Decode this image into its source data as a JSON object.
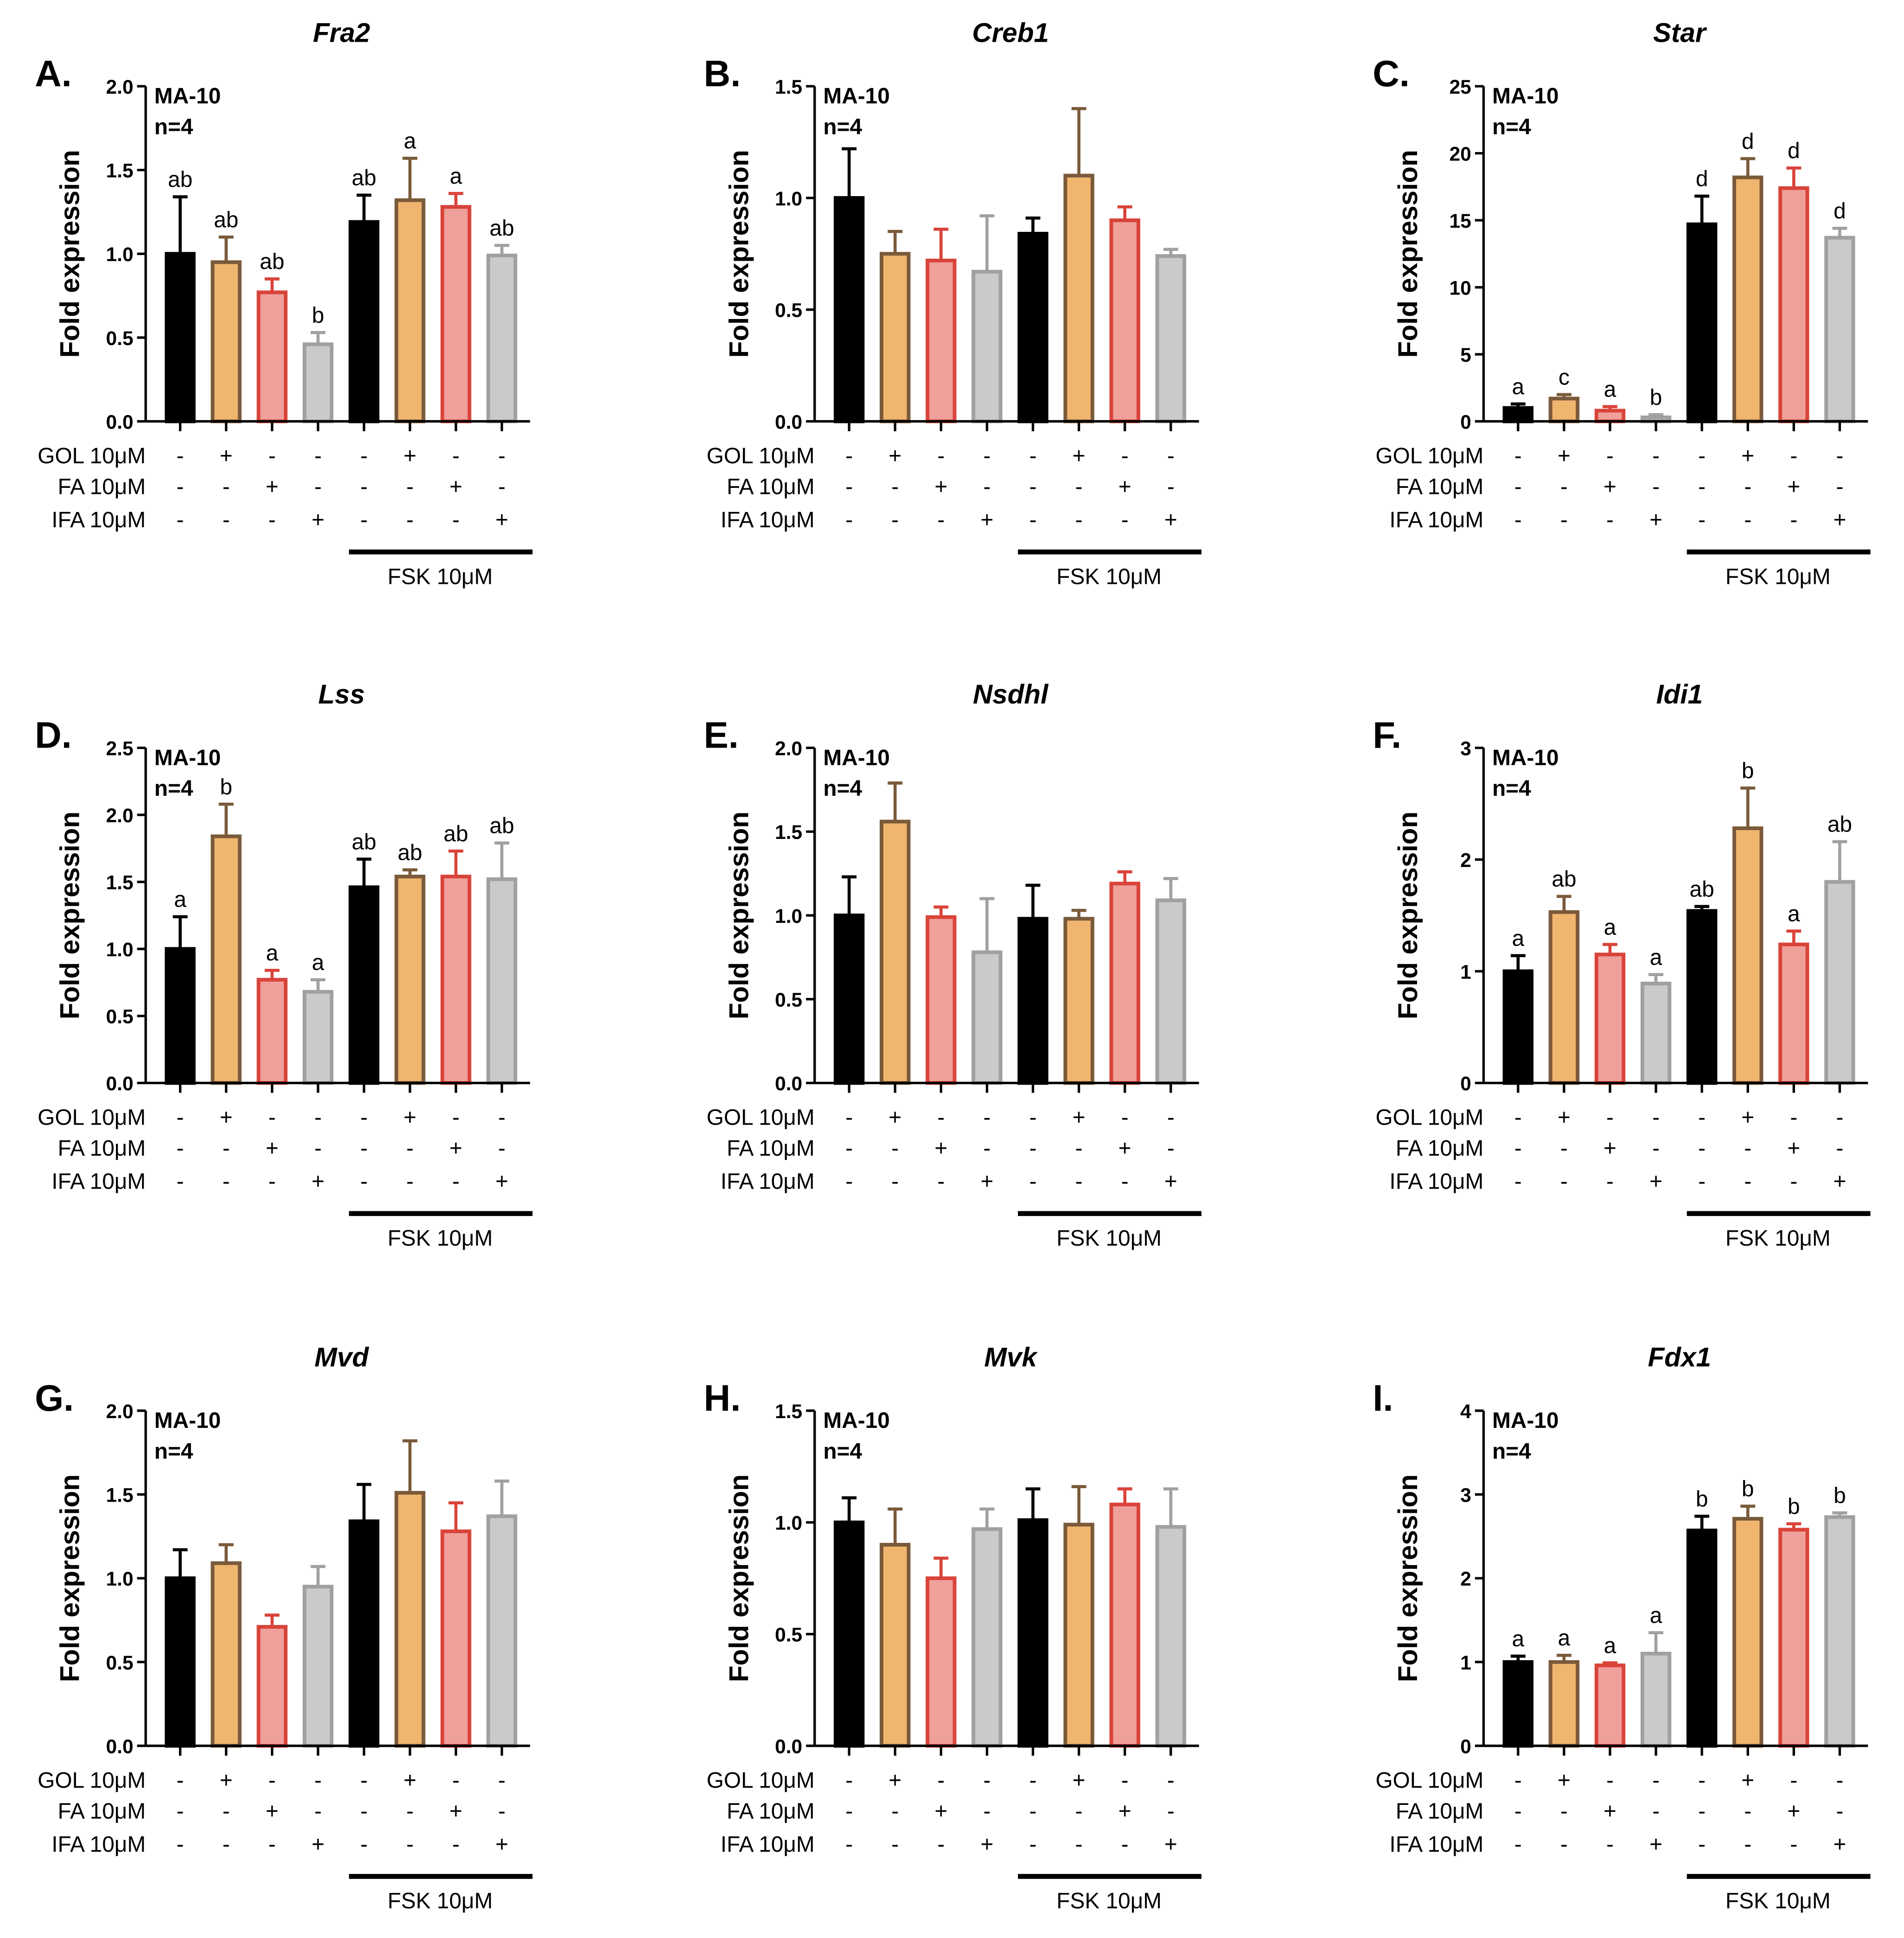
{
  "chart_data": [
    {
      "type": "bar",
      "panel": "A.",
      "title": "Fra2",
      "ylabel": "Fold expression",
      "cell_line": "MA-10",
      "n": "n=4",
      "ylim": [
        0,
        2
      ],
      "yticks": [
        {
          "value": 0,
          "label": "0.0"
        },
        {
          "value": 0.5,
          "label": "0.5"
        },
        {
          "value": 1,
          "label": "1.0"
        },
        {
          "value": 1.5,
          "label": "1.5"
        },
        {
          "value": 2,
          "label": "2.0"
        }
      ],
      "values": [
        1.0,
        0.95,
        0.77,
        0.46,
        1.19,
        1.32,
        1.28,
        0.99
      ],
      "errors": [
        0.34,
        0.15,
        0.08,
        0.07,
        0.16,
        0.25,
        0.08,
        0.06
      ],
      "letters": [
        "ab",
        "ab",
        "ab",
        "b",
        "ab",
        "a",
        "a",
        "ab"
      ],
      "colors": [
        "#000000",
        "#f0b56e",
        "#f0a09a",
        "#c8cacc",
        "#000000",
        "#f0b56e",
        "#f0a09a",
        "#c8cacc"
      ],
      "edge_colors": [
        "#000000",
        "#7a5a3a",
        "#d9443a",
        "#a0a0a0",
        "#000000",
        "#7a5a3a",
        "#d9443a",
        "#a0a0a0"
      ],
      "treatments": [
        {
          "name": "GOL 10μM",
          "signs": [
            "-",
            "+",
            "-",
            "-",
            "-",
            "+",
            "-",
            "-"
          ]
        },
        {
          "name": "FA 10μM",
          "signs": [
            "-",
            "-",
            "+",
            "-",
            "-",
            "-",
            "+",
            "-"
          ]
        },
        {
          "name": "IFA 10μM",
          "signs": [
            "-",
            "-",
            "-",
            "+",
            "-",
            "-",
            "-",
            "+"
          ]
        }
      ],
      "group_label": "FSK 10μM"
    },
    {
      "type": "bar",
      "panel": "B.",
      "title": "Creb1",
      "ylabel": "Fold expression",
      "cell_line": "MA-10",
      "n": "n=4",
      "ylim": [
        0,
        1.5
      ],
      "yticks": [
        {
          "value": 0,
          "label": "0.0"
        },
        {
          "value": 0.5,
          "label": "0.5"
        },
        {
          "value": 1,
          "label": "1.0"
        },
        {
          "value": 1.5,
          "label": "1.5"
        }
      ],
      "values": [
        1.0,
        0.75,
        0.72,
        0.67,
        0.84,
        1.1,
        0.9,
        0.74
      ],
      "errors": [
        0.22,
        0.1,
        0.14,
        0.25,
        0.07,
        0.3,
        0.06,
        0.03
      ],
      "colors": [
        "#000000",
        "#f0b56e",
        "#f0a09a",
        "#c8cacc",
        "#000000",
        "#f0b56e",
        "#f0a09a",
        "#c8cacc"
      ],
      "edge_colors": [
        "#000000",
        "#7a5a3a",
        "#d9443a",
        "#a0a0a0",
        "#000000",
        "#7a5a3a",
        "#d9443a",
        "#a0a0a0"
      ],
      "treatments": [
        {
          "name": "GOL 10μM",
          "signs": [
            "-",
            "+",
            "-",
            "-",
            "-",
            "+",
            "-",
            "-"
          ]
        },
        {
          "name": "FA 10μM",
          "signs": [
            "-",
            "-",
            "+",
            "-",
            "-",
            "-",
            "+",
            "-"
          ]
        },
        {
          "name": "IFA 10μM",
          "signs": [
            "-",
            "-",
            "-",
            "+",
            "-",
            "-",
            "-",
            "+"
          ]
        }
      ],
      "group_label": "FSK 10μM"
    },
    {
      "type": "bar",
      "panel": "C.",
      "title": "Star",
      "ylabel": "Fold expression",
      "cell_line": "MA-10",
      "n": "n=4",
      "ylim": [
        0,
        25
      ],
      "yticks": [
        0,
        5,
        10,
        15,
        20,
        25
      ],
      "values": [
        1.0,
        1.7,
        0.8,
        0.3,
        14.7,
        18.2,
        17.4,
        13.7
      ],
      "errors": [
        0.3,
        0.3,
        0.3,
        0.2,
        2.1,
        1.4,
        1.5,
        0.7
      ],
      "letters": [
        "a",
        "c",
        "a",
        "b",
        "d",
        "d",
        "d",
        "d"
      ],
      "colors": [
        "#000000",
        "#f0b56e",
        "#f0a09a",
        "#c8cacc",
        "#000000",
        "#f0b56e",
        "#f0a09a",
        "#c8cacc"
      ],
      "edge_colors": [
        "#000000",
        "#7a5a3a",
        "#d9443a",
        "#a0a0a0",
        "#000000",
        "#7a5a3a",
        "#d9443a",
        "#a0a0a0"
      ],
      "treatments": [
        {
          "name": "GOL 10μM",
          "signs": [
            "-",
            "+",
            "-",
            "-",
            "-",
            "+",
            "-",
            "-"
          ]
        },
        {
          "name": "FA 10μM",
          "signs": [
            "-",
            "-",
            "+",
            "-",
            "-",
            "-",
            "+",
            "-"
          ]
        },
        {
          "name": "IFA 10μM",
          "signs": [
            "-",
            "-",
            "-",
            "+",
            "-",
            "-",
            "-",
            "+"
          ]
        }
      ],
      "group_label": "FSK 10μM"
    },
    {
      "type": "bar",
      "panel": "D.",
      "title": "Lss",
      "ylabel": "Fold expression",
      "cell_line": "MA-10",
      "n": "n=4",
      "ylim": [
        0,
        2.5
      ],
      "yticks": [
        {
          "value": 0,
          "label": "0.0"
        },
        {
          "value": 0.5,
          "label": "0.5"
        },
        {
          "value": 1,
          "label": "1.0"
        },
        {
          "value": 1.5,
          "label": "1.5"
        },
        {
          "value": 2,
          "label": "2.0"
        },
        {
          "value": 2.5,
          "label": "2.5"
        }
      ],
      "values": [
        1.0,
        1.84,
        0.77,
        0.68,
        1.46,
        1.54,
        1.54,
        1.52
      ],
      "errors": [
        0.24,
        0.24,
        0.07,
        0.09,
        0.21,
        0.05,
        0.19,
        0.27
      ],
      "letters": [
        "a",
        "b",
        "a",
        "a",
        "ab",
        "ab",
        "ab",
        "ab"
      ],
      "colors": [
        "#000000",
        "#f0b56e",
        "#f0a09a",
        "#c8cacc",
        "#000000",
        "#f0b56e",
        "#f0a09a",
        "#c8cacc"
      ],
      "edge_colors": [
        "#000000",
        "#7a5a3a",
        "#d9443a",
        "#a0a0a0",
        "#000000",
        "#7a5a3a",
        "#d9443a",
        "#a0a0a0"
      ],
      "treatments": [
        {
          "name": "GOL 10μM",
          "signs": [
            "-",
            "+",
            "-",
            "-",
            "-",
            "+",
            "-",
            "-"
          ]
        },
        {
          "name": "FA 10μM",
          "signs": [
            "-",
            "-",
            "+",
            "-",
            "-",
            "-",
            "+",
            "-"
          ]
        },
        {
          "name": "IFA 10μM",
          "signs": [
            "-",
            "-",
            "-",
            "+",
            "-",
            "-",
            "-",
            "+"
          ]
        }
      ],
      "group_label": "FSK 10μM"
    },
    {
      "type": "bar",
      "panel": "E.",
      "title": "Nsdhl",
      "ylabel": "Fold expression",
      "cell_line": "MA-10",
      "n": "n=4",
      "ylim": [
        0,
        2
      ],
      "yticks": [
        {
          "value": 0,
          "label": "0.0"
        },
        {
          "value": 0.5,
          "label": "0.5"
        },
        {
          "value": 1,
          "label": "1.0"
        },
        {
          "value": 1.5,
          "label": "1.5"
        },
        {
          "value": 2,
          "label": "2.0"
        }
      ],
      "values": [
        1.0,
        1.56,
        0.99,
        0.78,
        0.98,
        0.98,
        1.19,
        1.09
      ],
      "errors": [
        0.23,
        0.23,
        0.06,
        0.32,
        0.2,
        0.05,
        0.07,
        0.13
      ],
      "colors": [
        "#000000",
        "#f0b56e",
        "#f0a09a",
        "#c8cacc",
        "#000000",
        "#f0b56e",
        "#f0a09a",
        "#c8cacc"
      ],
      "edge_colors": [
        "#000000",
        "#7a5a3a",
        "#d9443a",
        "#a0a0a0",
        "#000000",
        "#7a5a3a",
        "#d9443a",
        "#a0a0a0"
      ],
      "treatments": [
        {
          "name": "GOL 10μM",
          "signs": [
            "-",
            "+",
            "-",
            "-",
            "-",
            "+",
            "-",
            "-"
          ]
        },
        {
          "name": "FA 10μM",
          "signs": [
            "-",
            "-",
            "+",
            "-",
            "-",
            "-",
            "+",
            "-"
          ]
        },
        {
          "name": "IFA 10μM",
          "signs": [
            "-",
            "-",
            "-",
            "+",
            "-",
            "-",
            "-",
            "+"
          ]
        }
      ],
      "group_label": "FSK 10μM"
    },
    {
      "type": "bar",
      "panel": "F.",
      "title": "Idi1",
      "ylabel": "Fold expression",
      "cell_line": "MA-10",
      "n": "n=4",
      "ylim": [
        0,
        3
      ],
      "yticks": [
        0,
        1,
        2,
        3
      ],
      "values": [
        1.0,
        1.53,
        1.15,
        0.89,
        1.54,
        2.28,
        1.24,
        1.8
      ],
      "errors": [
        0.14,
        0.14,
        0.09,
        0.08,
        0.04,
        0.36,
        0.12,
        0.36
      ],
      "letters": [
        "a",
        "ab",
        "a",
        "a",
        "ab",
        "b",
        "a",
        "ab"
      ],
      "colors": [
        "#000000",
        "#f0b56e",
        "#f0a09a",
        "#c8cacc",
        "#000000",
        "#f0b56e",
        "#f0a09a",
        "#c8cacc"
      ],
      "edge_colors": [
        "#000000",
        "#7a5a3a",
        "#d9443a",
        "#a0a0a0",
        "#000000",
        "#7a5a3a",
        "#d9443a",
        "#a0a0a0"
      ],
      "treatments": [
        {
          "name": "GOL 10μM",
          "signs": [
            "-",
            "+",
            "-",
            "-",
            "-",
            "+",
            "-",
            "-"
          ]
        },
        {
          "name": "FA 10μM",
          "signs": [
            "-",
            "-",
            "+",
            "-",
            "-",
            "-",
            "+",
            "-"
          ]
        },
        {
          "name": "IFA 10μM",
          "signs": [
            "-",
            "-",
            "-",
            "+",
            "-",
            "-",
            "-",
            "+"
          ]
        }
      ],
      "group_label": "FSK 10μM"
    },
    {
      "type": "bar",
      "panel": "G.",
      "title": "Mvd",
      "ylabel": "Fold expression",
      "cell_line": "MA-10",
      "n": "n=4",
      "ylim": [
        0,
        2
      ],
      "yticks": [
        {
          "value": 0,
          "label": "0.0"
        },
        {
          "value": 0.5,
          "label": "0.5"
        },
        {
          "value": 1,
          "label": "1.0"
        },
        {
          "value": 1.5,
          "label": "1.5"
        },
        {
          "value": 2,
          "label": "2.0"
        }
      ],
      "values": [
        1.0,
        1.09,
        0.71,
        0.95,
        1.34,
        1.51,
        1.28,
        1.37
      ],
      "errors": [
        0.17,
        0.11,
        0.07,
        0.12,
        0.22,
        0.31,
        0.17,
        0.21
      ],
      "colors": [
        "#000000",
        "#f0b56e",
        "#f0a09a",
        "#c8cacc",
        "#000000",
        "#f0b56e",
        "#f0a09a",
        "#c8cacc"
      ],
      "edge_colors": [
        "#000000",
        "#7a5a3a",
        "#d9443a",
        "#a0a0a0",
        "#000000",
        "#7a5a3a",
        "#d9443a",
        "#a0a0a0"
      ],
      "treatments": [
        {
          "name": "GOL 10μM",
          "signs": [
            "-",
            "+",
            "-",
            "-",
            "-",
            "+",
            "-",
            "-"
          ]
        },
        {
          "name": "FA 10μM",
          "signs": [
            "-",
            "-",
            "+",
            "-",
            "-",
            "-",
            "+",
            "-"
          ]
        },
        {
          "name": "IFA 10μM",
          "signs": [
            "-",
            "-",
            "-",
            "+",
            "-",
            "-",
            "-",
            "+"
          ]
        }
      ],
      "group_label": "FSK 10μM"
    },
    {
      "type": "bar",
      "panel": "H.",
      "title": "Mvk",
      "ylabel": "Fold expression",
      "cell_line": "MA-10",
      "n": "n=4",
      "ylim": [
        0,
        1.5
      ],
      "yticks": [
        {
          "value": 0,
          "label": "0.0"
        },
        {
          "value": 0.5,
          "label": "0.5"
        },
        {
          "value": 1,
          "label": "1.0"
        },
        {
          "value": 1.5,
          "label": "1.5"
        }
      ],
      "values": [
        1.0,
        0.9,
        0.75,
        0.97,
        1.01,
        0.99,
        1.08,
        0.98
      ],
      "errors": [
        0.11,
        0.16,
        0.09,
        0.09,
        0.14,
        0.17,
        0.07,
        0.17
      ],
      "colors": [
        "#000000",
        "#f0b56e",
        "#f0a09a",
        "#c8cacc",
        "#000000",
        "#f0b56e",
        "#f0a09a",
        "#c8cacc"
      ],
      "edge_colors": [
        "#000000",
        "#7a5a3a",
        "#d9443a",
        "#a0a0a0",
        "#000000",
        "#7a5a3a",
        "#d9443a",
        "#a0a0a0"
      ],
      "treatments": [
        {
          "name": "GOL 10μM",
          "signs": [
            "-",
            "+",
            "-",
            "-",
            "-",
            "+",
            "-",
            "-"
          ]
        },
        {
          "name": "FA 10μM",
          "signs": [
            "-",
            "-",
            "+",
            "-",
            "-",
            "-",
            "+",
            "-"
          ]
        },
        {
          "name": "IFA 10μM",
          "signs": [
            "-",
            "-",
            "-",
            "+",
            "-",
            "-",
            "-",
            "+"
          ]
        }
      ],
      "group_label": "FSK 10μM"
    },
    {
      "type": "bar",
      "panel": "I.",
      "title": "Fdx1",
      "ylabel": "Fold expression",
      "cell_line": "MA-10",
      "n": "n=4",
      "ylim": [
        0,
        4
      ],
      "yticks": [
        0,
        1,
        2,
        3,
        4
      ],
      "values": [
        1.0,
        1.0,
        0.96,
        1.1,
        2.57,
        2.71,
        2.58,
        2.73
      ],
      "errors": [
        0.07,
        0.08,
        0.03,
        0.25,
        0.17,
        0.15,
        0.07,
        0.05
      ],
      "letters": [
        "a",
        "a",
        "a",
        "a",
        "b",
        "b",
        "b",
        "b"
      ],
      "colors": [
        "#000000",
        "#f0b56e",
        "#f0a09a",
        "#c8cacc",
        "#000000",
        "#f0b56e",
        "#f0a09a",
        "#c8cacc"
      ],
      "edge_colors": [
        "#000000",
        "#7a5a3a",
        "#d9443a",
        "#a0a0a0",
        "#000000",
        "#7a5a3a",
        "#d9443a",
        "#a0a0a0"
      ],
      "treatments": [
        {
          "name": "GOL 10μM",
          "signs": [
            "-",
            "+",
            "-",
            "-",
            "-",
            "+",
            "-",
            "-"
          ]
        },
        {
          "name": "FA 10μM",
          "signs": [
            "-",
            "-",
            "+",
            "-",
            "-",
            "-",
            "+",
            "-"
          ]
        },
        {
          "name": "IFA 10μM",
          "signs": [
            "-",
            "-",
            "-",
            "+",
            "-",
            "-",
            "-",
            "+"
          ]
        }
      ],
      "group_label": "FSK 10μM"
    }
  ]
}
